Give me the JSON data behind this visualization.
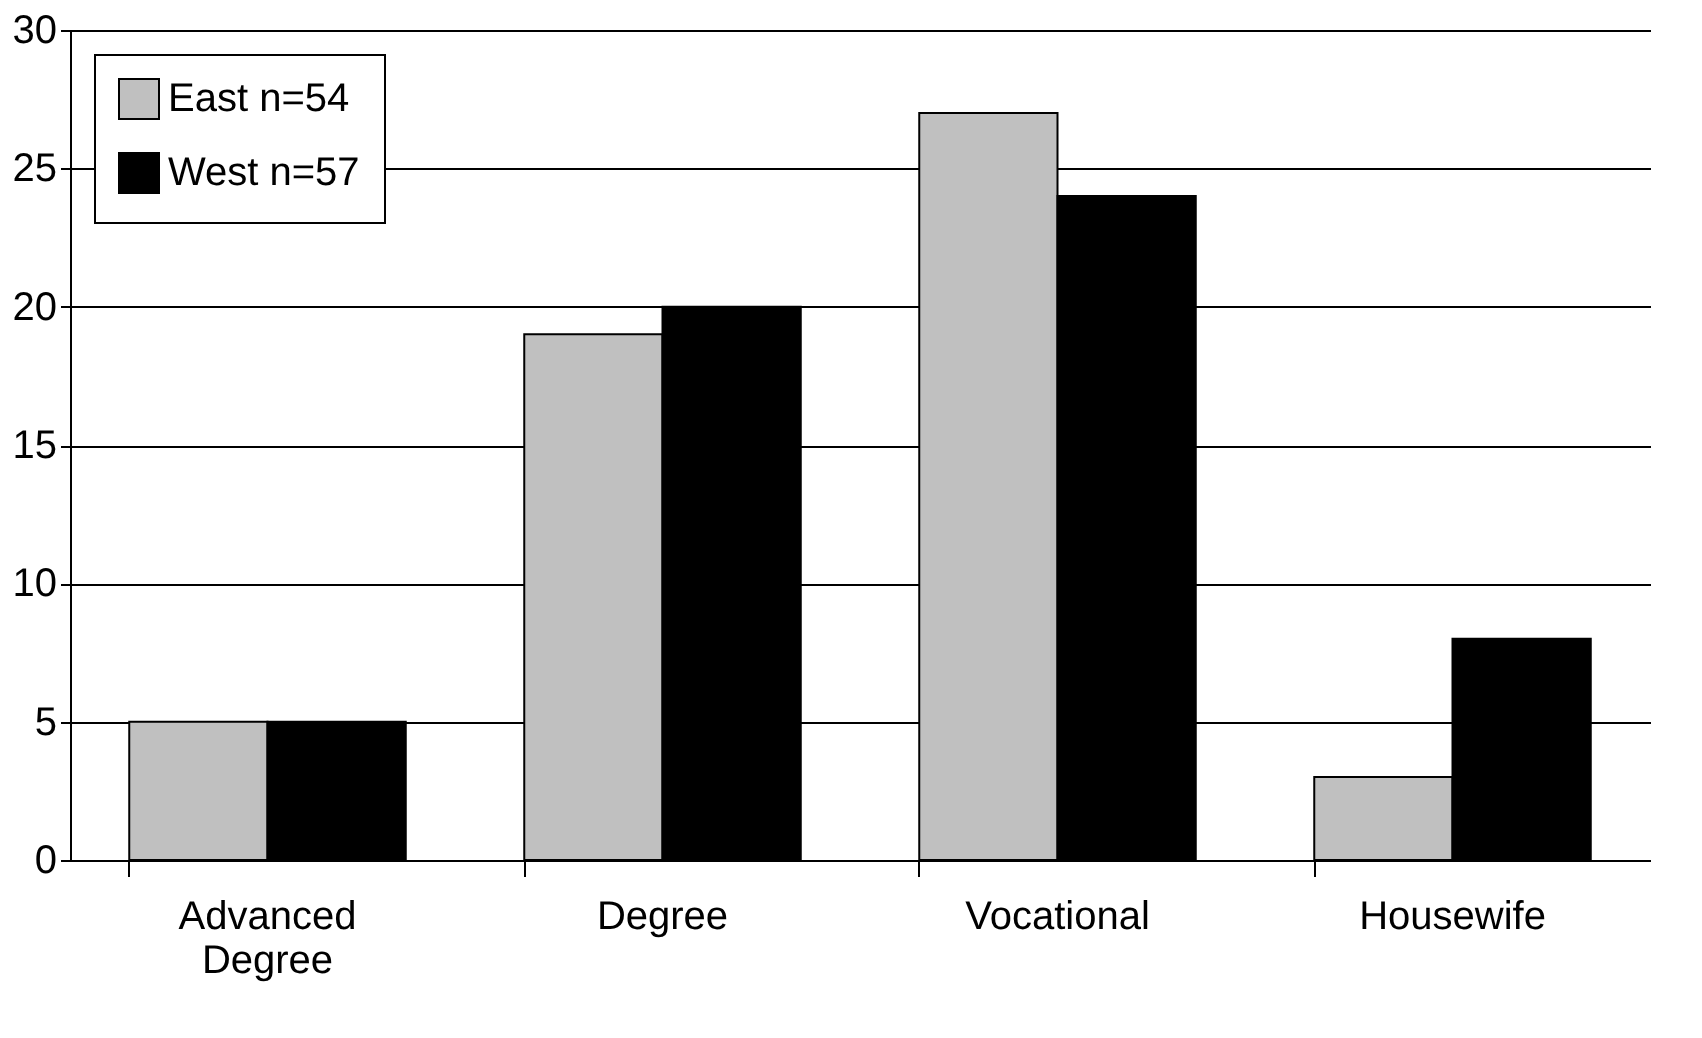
{
  "chart_data": {
    "type": "bar",
    "categories": [
      "Advanced Degree",
      "Degree",
      "Vocational",
      "Housewife"
    ],
    "series": [
      {
        "name": "East n=54",
        "color": "#c0c0c0",
        "values": [
          5,
          19,
          27,
          3
        ]
      },
      {
        "name": "West n=57",
        "color": "#000000",
        "values": [
          5,
          20,
          24,
          8
        ]
      }
    ],
    "ylim": [
      0,
      30
    ],
    "yticks": [
      0,
      5,
      10,
      15,
      20,
      25,
      30
    ],
    "grid": "y",
    "legend": "top left"
  }
}
